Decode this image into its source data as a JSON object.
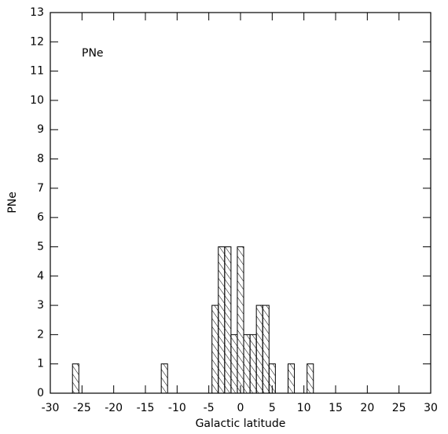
{
  "chart_data": {
    "type": "histogram",
    "xlabel": "Galactic latitude",
    "ylabel": "PNe",
    "annotation": "PNe",
    "bins": [
      -26.5,
      -25.5,
      -24.5,
      -23.5,
      -22.5,
      -21.5,
      -20.5,
      -19.5,
      -18.5,
      -17.5,
      -16.5,
      -15.5,
      -14.5,
      -13.5,
      -12.5,
      -11.5,
      -10.5,
      -9.5,
      -8.5,
      -7.5,
      -6.5,
      -5.5,
      -4.5,
      -3.5,
      -2.5,
      -1.5,
      -0.5,
      0.5,
      1.5,
      2.5,
      3.5,
      4.5,
      5.5,
      6.5,
      7.5,
      8.5,
      9.5,
      10.5,
      11.5
    ],
    "counts": [
      1,
      0,
      0,
      0,
      0,
      0,
      0,
      0,
      0,
      0,
      0,
      0,
      0,
      0,
      1,
      0,
      0,
      0,
      0,
      0,
      0,
      0,
      3,
      5,
      5,
      2,
      5,
      2,
      2,
      3,
      3,
      1,
      0,
      0,
      1,
      0,
      0,
      1
    ],
    "color": "#000000",
    "xlim": [
      -30,
      30
    ],
    "xticks": [
      -30,
      -25,
      -20,
      -15,
      -10,
      -5,
      0,
      5,
      10,
      15,
      20,
      25,
      30
    ],
    "ylim": [
      0,
      13
    ],
    "yticks": [
      0,
      1,
      2,
      3,
      4,
      5,
      6,
      7,
      8,
      9,
      10,
      11,
      12,
      13
    ]
  }
}
